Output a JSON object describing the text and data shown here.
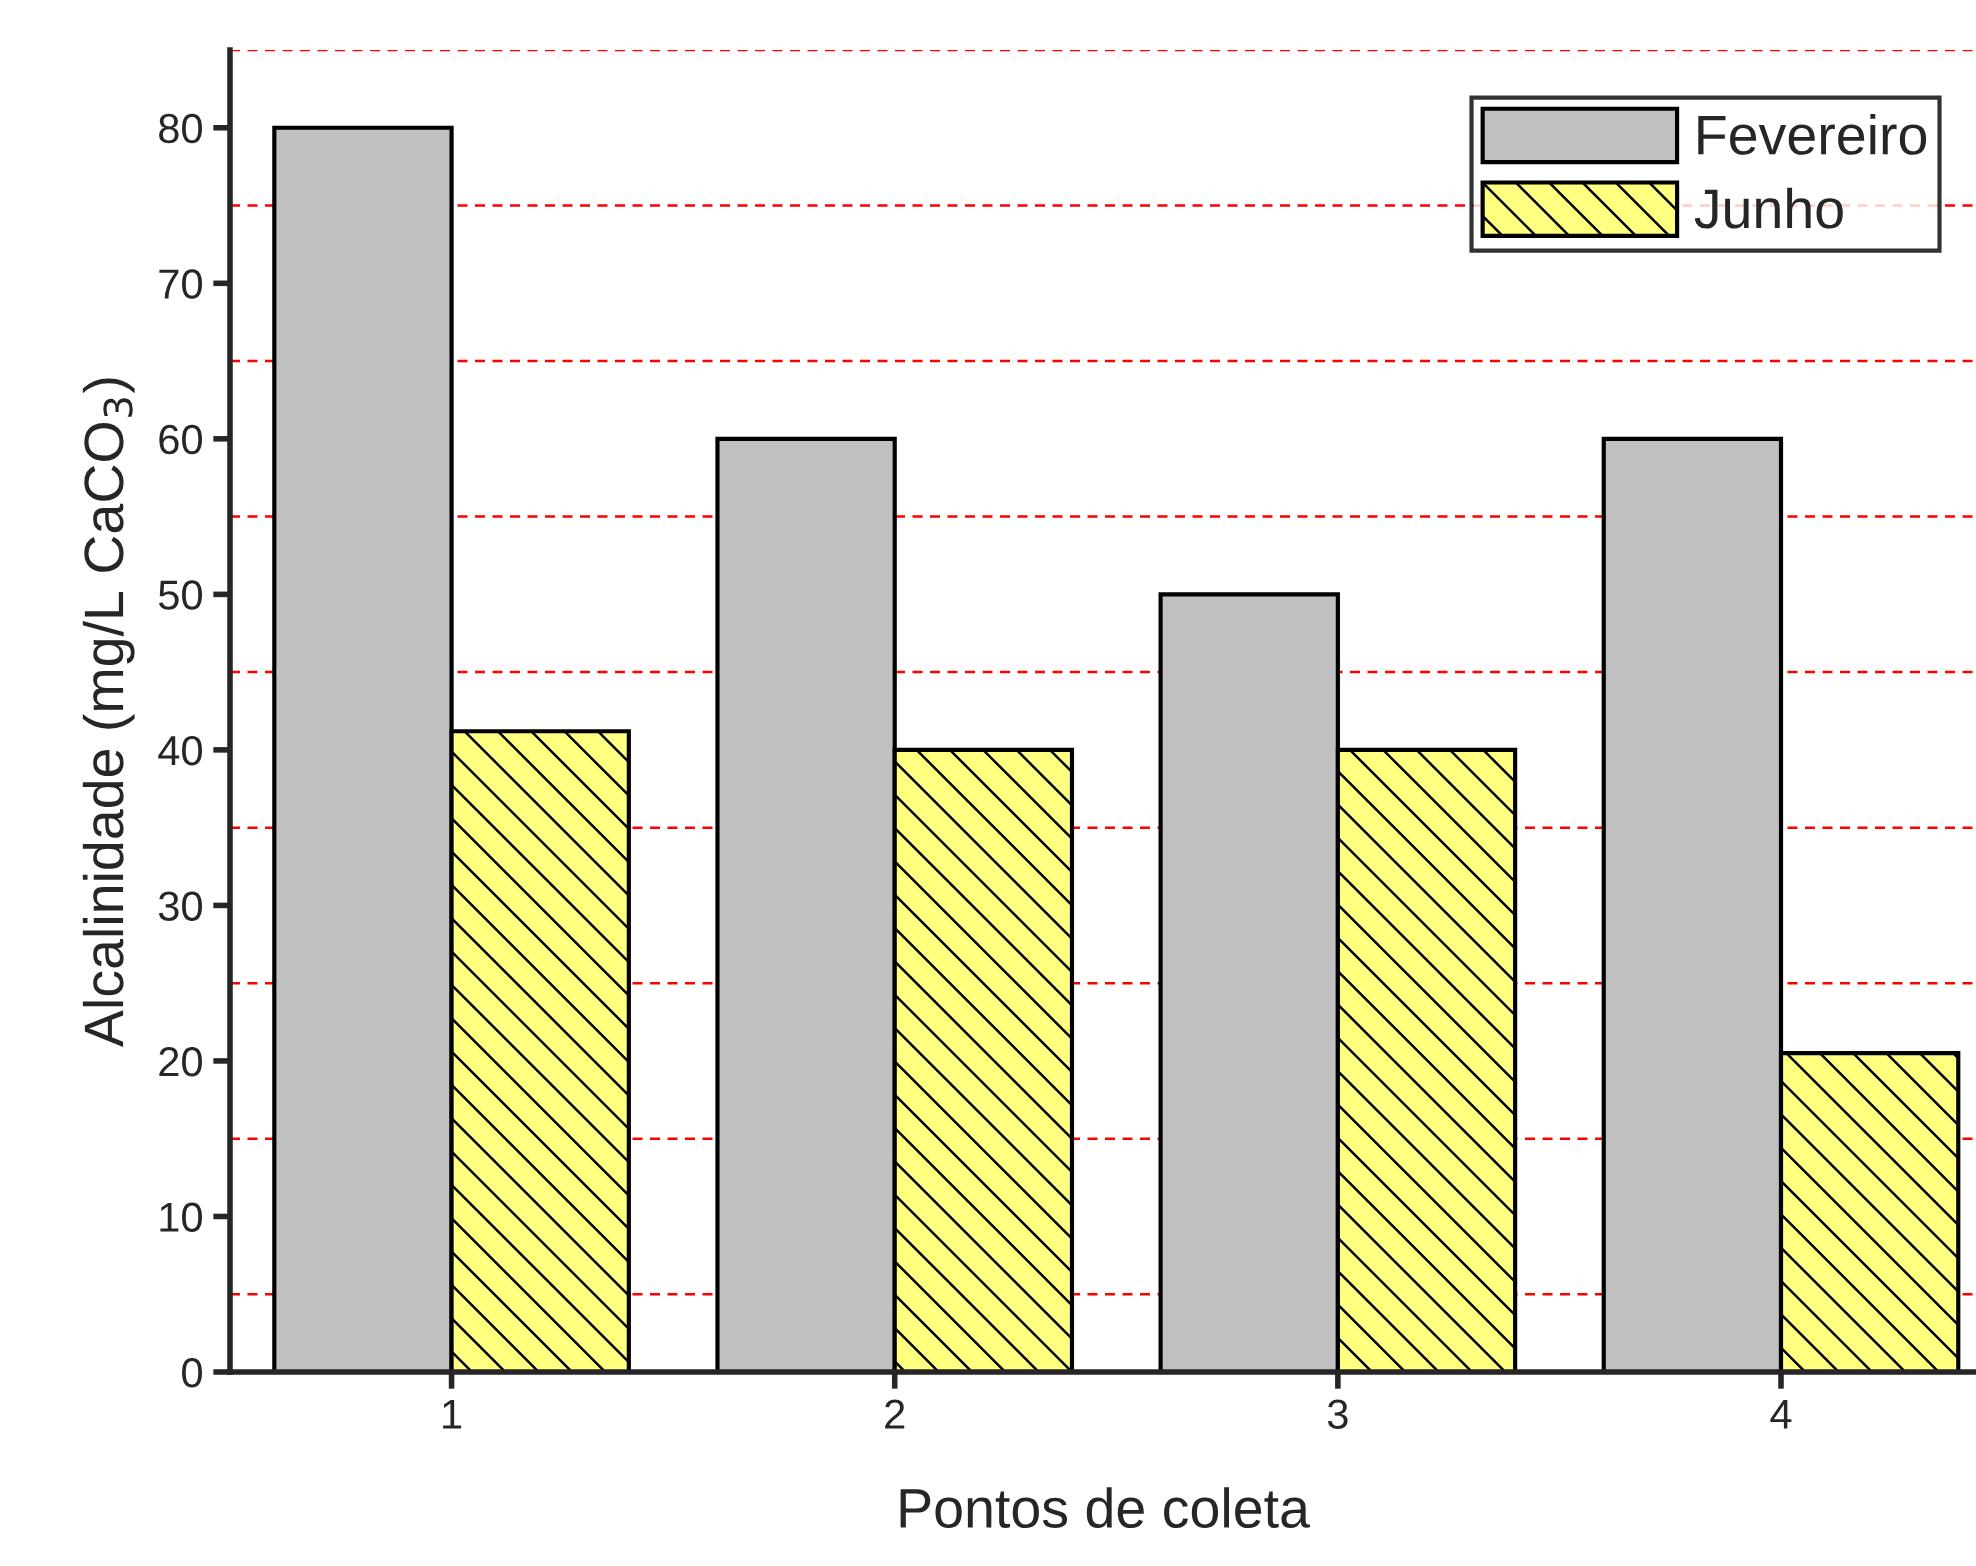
{
  "chart_data": {
    "type": "bar",
    "xlabel": "Pontos de coleta",
    "ylabel": "Alcalinidade (mg/L CaCO$_{3}$)",
    "categories": [
      "1",
      "2",
      "3",
      "4"
    ],
    "series": [
      {
        "name": "Fevereiro",
        "color": "#c0c0c0",
        "values": [
          80,
          60,
          50,
          60
        ]
      },
      {
        "name": "Junho",
        "color": "#ffff80",
        "values": [
          41.2,
          40,
          40,
          20.5
        ]
      }
    ],
    "ylim": [
      0,
      85
    ],
    "yticks": [
      0,
      10,
      20,
      30,
      40,
      50,
      60,
      70,
      80
    ],
    "ref_lines": [
      {
        "axis": "y",
        "value": 5,
        "color": "#ff0000",
        "line_style": "dashed"
      },
      {
        "axis": "y",
        "value": 15,
        "color": "#ff0000",
        "line_style": "dashed"
      },
      {
        "axis": "y",
        "value": 25,
        "color": "#ff0000",
        "line_style": "dashed"
      },
      {
        "axis": "y",
        "value": 35,
        "color": "#ff0000",
        "line_style": "dashed"
      },
      {
        "axis": "y",
        "value": 45,
        "color": "#ff0000",
        "line_style": "dashed"
      },
      {
        "axis": "y",
        "value": 55,
        "color": "#ff0000",
        "line_style": "dashed"
      },
      {
        "axis": "y",
        "value": 65,
        "color": "#ff0000",
        "line_style": "dashed"
      },
      {
        "axis": "y",
        "value": 75,
        "color": "#ff0000",
        "line_style": "dashed"
      },
      {
        "axis": "y",
        "value": 85,
        "color": "#ff0000",
        "line_style": "dashed"
      }
    ],
    "grid": false,
    "legend": "top right"
  }
}
